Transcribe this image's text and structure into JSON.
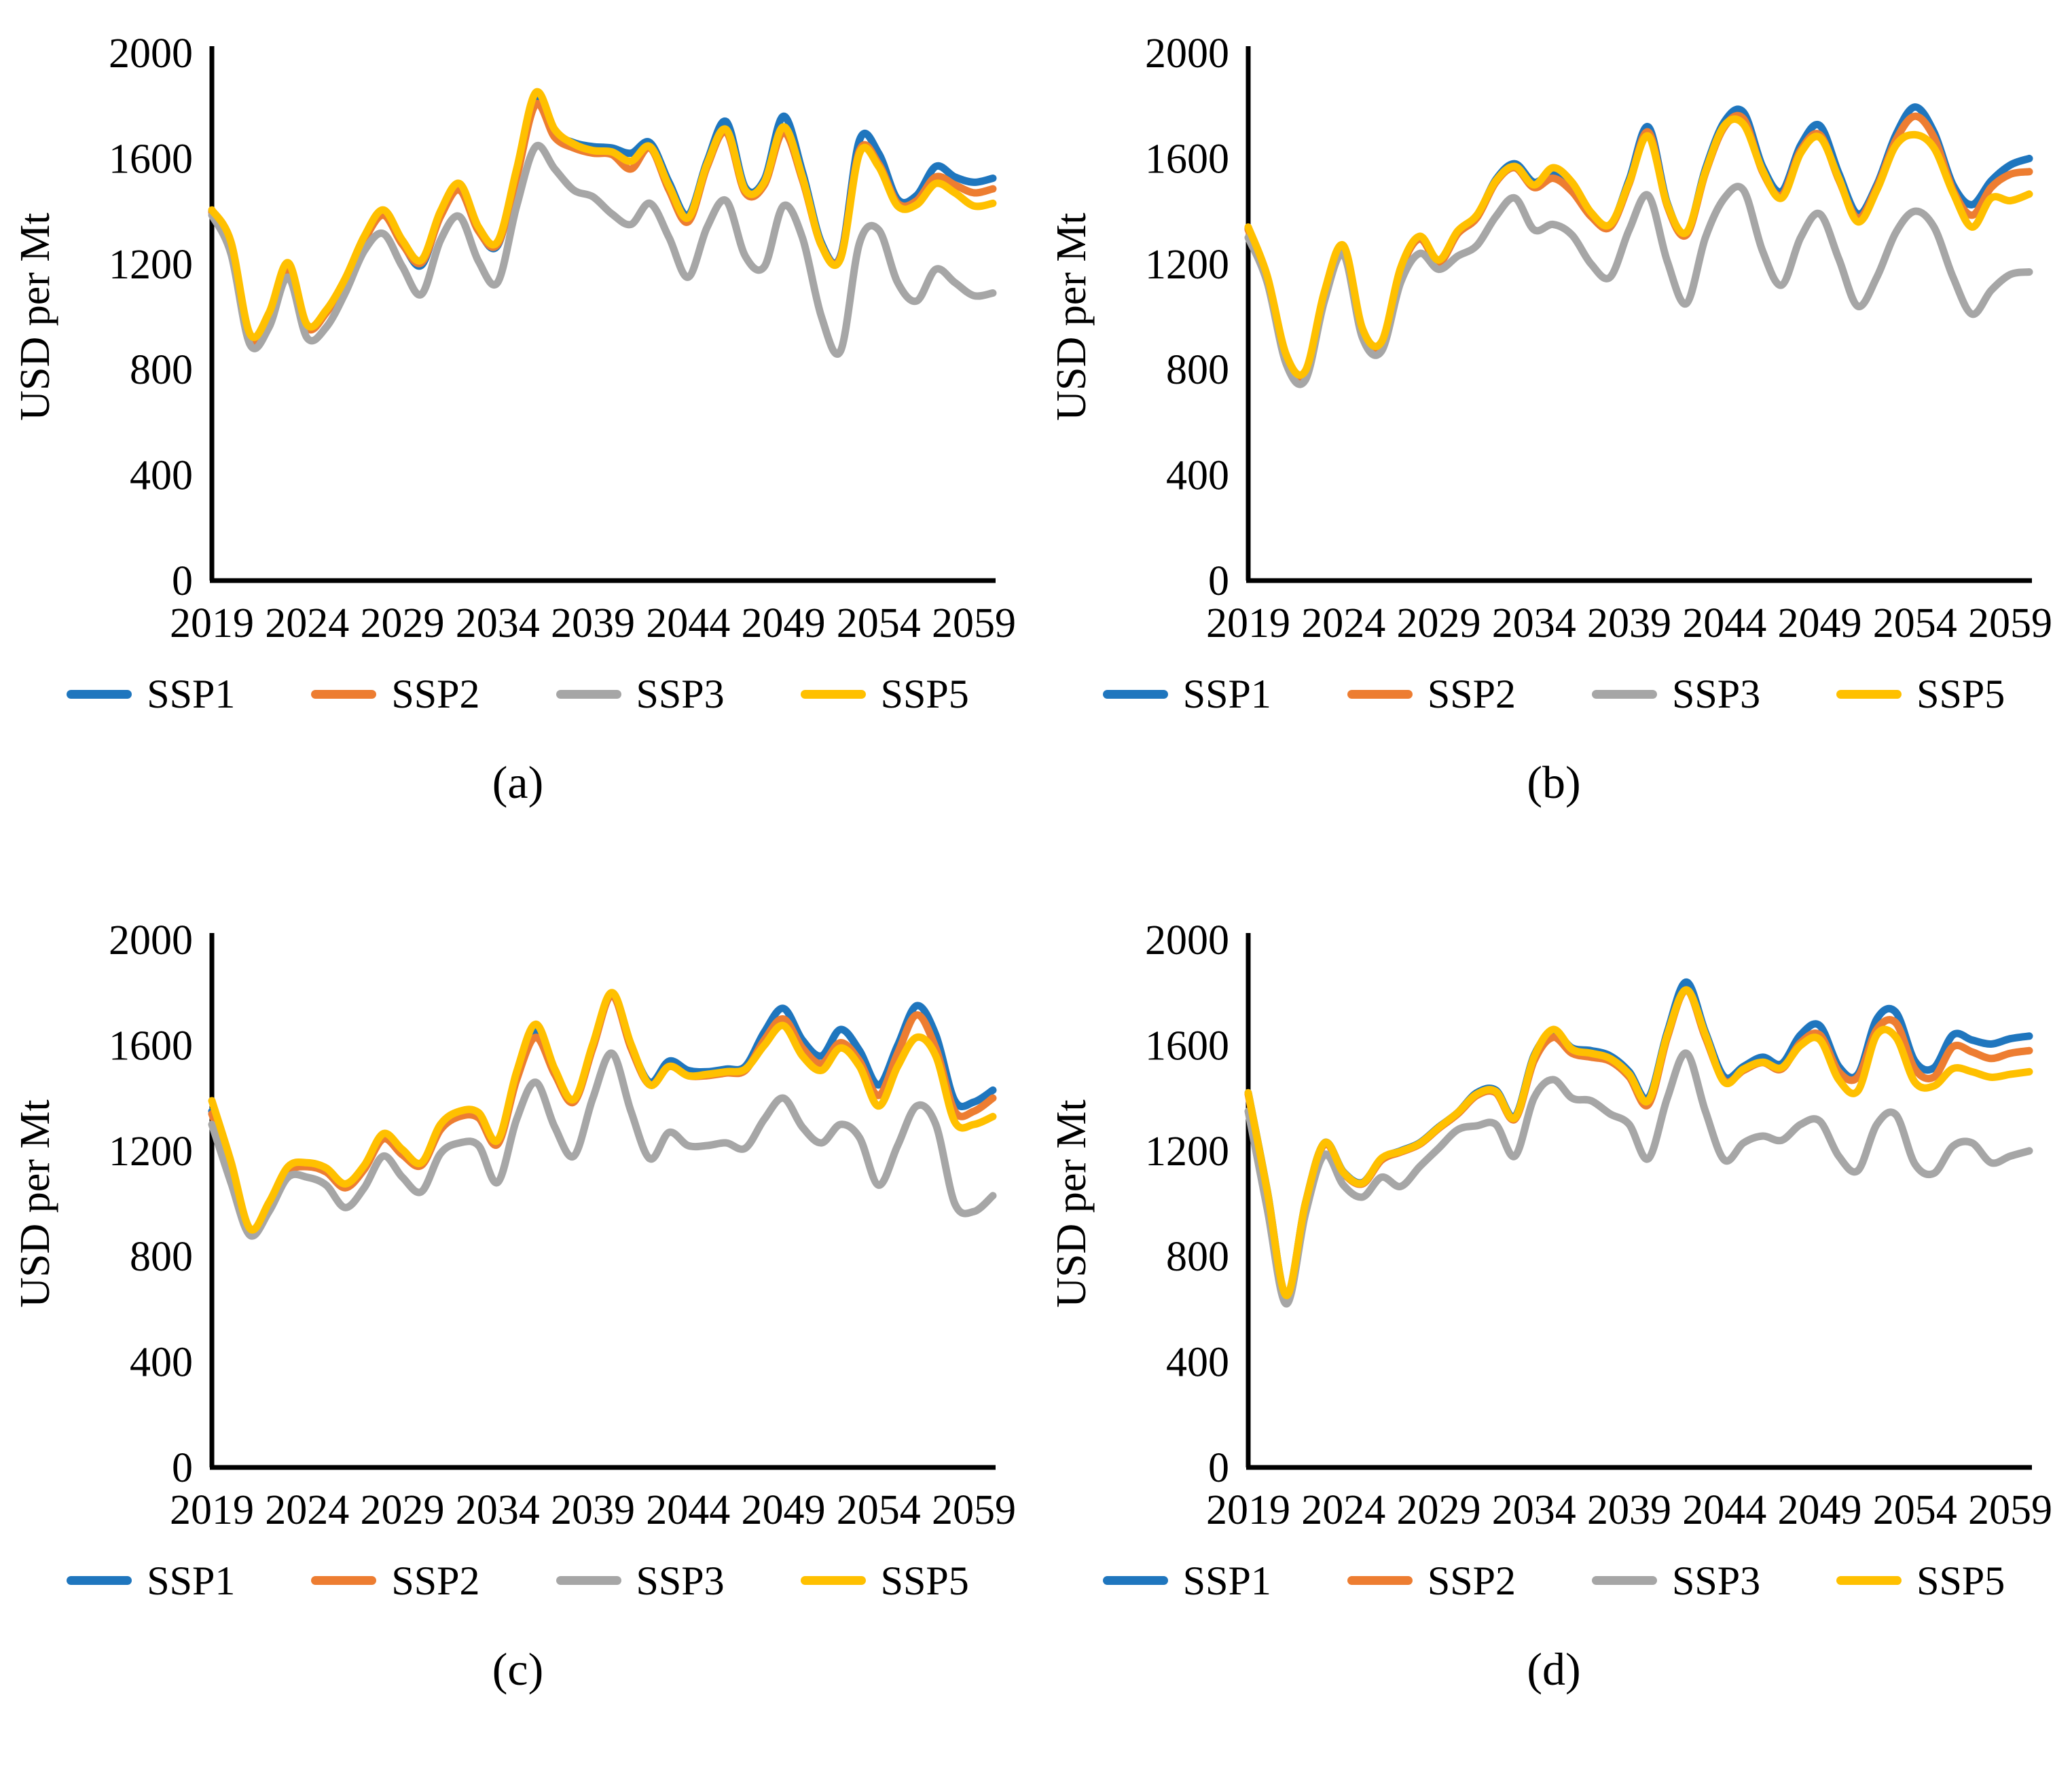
{
  "figure": {
    "y_axis_label": "USD per Mt",
    "y_ticks": [
      0,
      400,
      800,
      1200,
      1600,
      2000
    ],
    "x_ticks": [
      2019,
      2024,
      2029,
      2034,
      2039,
      2044,
      2049,
      2054,
      2059
    ],
    "ylim": [
      0,
      2000
    ],
    "x_range": [
      2019,
      2060
    ],
    "grid": "off",
    "legend_position": "bottom"
  },
  "legend": {
    "items": [
      {
        "label": "SSP1",
        "color": "#1F76BE"
      },
      {
        "label": "SSP2",
        "color": "#ED7D31"
      },
      {
        "label": "SSP3",
        "color": "#A6A6A6"
      },
      {
        "label": "SSP5",
        "color": "#FFC000"
      }
    ]
  },
  "chart_data": [
    {
      "type": "line",
      "caption": "(a)",
      "title": "",
      "xlabel": "",
      "ylabel": "USD per Mt",
      "ylim": [
        0,
        2000
      ],
      "x": [
        2019,
        2020,
        2021,
        2022,
        2023,
        2024,
        2025,
        2026,
        2027,
        2028,
        2029,
        2030,
        2031,
        2032,
        2033,
        2034,
        2035,
        2036,
        2037,
        2038,
        2039,
        2040,
        2041,
        2042,
        2043,
        2044,
        2045,
        2046,
        2047,
        2048,
        2049,
        2050,
        2051,
        2052,
        2053,
        2054,
        2055,
        2056,
        2057,
        2058,
        2059,
        2060
      ],
      "series": [
        {
          "name": "SSP1",
          "color": "#1F76BE",
          "values": [
            1400,
            1280,
            930,
            1010,
            1195,
            965,
            1020,
            1140,
            1300,
            1395,
            1280,
            1195,
            1390,
            1500,
            1330,
            1270,
            1550,
            1830,
            1700,
            1660,
            1645,
            1640,
            1620,
            1660,
            1510,
            1385,
            1590,
            1740,
            1490,
            1520,
            1760,
            1550,
            1280,
            1230,
            1670,
            1620,
            1445,
            1460,
            1570,
            1530,
            1510,
            1525
          ]
        },
        {
          "name": "SSP2",
          "color": "#ED7D31",
          "values": [
            1395,
            1275,
            920,
            1000,
            1180,
            958,
            1015,
            1135,
            1290,
            1385,
            1275,
            1205,
            1380,
            1480,
            1325,
            1275,
            1530,
            1805,
            1680,
            1640,
            1620,
            1615,
            1560,
            1640,
            1480,
            1360,
            1570,
            1700,
            1470,
            1500,
            1700,
            1520,
            1270,
            1225,
            1630,
            1580,
            1430,
            1440,
            1530,
            1500,
            1470,
            1485
          ]
        },
        {
          "name": "SSP3",
          "color": "#A6A6A6",
          "values": [
            1385,
            1240,
            895,
            960,
            1150,
            920,
            960,
            1090,
            1250,
            1315,
            1190,
            1085,
            1290,
            1380,
            1210,
            1130,
            1420,
            1645,
            1560,
            1480,
            1455,
            1390,
            1350,
            1430,
            1300,
            1150,
            1340,
            1440,
            1230,
            1190,
            1420,
            1300,
            1000,
            870,
            1280,
            1330,
            1130,
            1060,
            1180,
            1130,
            1080,
            1090
          ]
        },
        {
          "name": "SSP5",
          "color": "#FFC000",
          "values": [
            1405,
            1285,
            935,
            1015,
            1205,
            970,
            1025,
            1145,
            1305,
            1405,
            1290,
            1215,
            1400,
            1505,
            1340,
            1285,
            1560,
            1850,
            1710,
            1655,
            1630,
            1625,
            1590,
            1645,
            1495,
            1375,
            1580,
            1710,
            1480,
            1510,
            1720,
            1530,
            1270,
            1220,
            1620,
            1570,
            1420,
            1425,
            1505,
            1470,
            1420,
            1430
          ]
        }
      ]
    },
    {
      "type": "line",
      "caption": "(b)",
      "title": "",
      "xlabel": "",
      "ylabel": "USD per Mt",
      "ylim": [
        0,
        2000
      ],
      "x": [
        2019,
        2020,
        2021,
        2022,
        2023,
        2024,
        2025,
        2026,
        2027,
        2028,
        2029,
        2030,
        2031,
        2032,
        2033,
        2034,
        2035,
        2036,
        2037,
        2038,
        2039,
        2040,
        2041,
        2042,
        2043,
        2044,
        2045,
        2046,
        2047,
        2048,
        2049,
        2050,
        2051,
        2052,
        2053,
        2054,
        2055,
        2056,
        2057,
        2058,
        2059,
        2060
      ],
      "series": [
        {
          "name": "SSP1",
          "color": "#1F76BE",
          "values": [
            1335,
            1150,
            850,
            790,
            1090,
            1265,
            950,
            900,
            1180,
            1300,
            1210,
            1320,
            1380,
            1520,
            1580,
            1510,
            1545,
            1490,
            1390,
            1345,
            1520,
            1720,
            1430,
            1315,
            1560,
            1740,
            1775,
            1570,
            1475,
            1650,
            1725,
            1545,
            1390,
            1500,
            1690,
            1795,
            1700,
            1500,
            1425,
            1515,
            1575,
            1600
          ]
        },
        {
          "name": "SSP2",
          "color": "#ED7D31",
          "values": [
            1330,
            1145,
            845,
            785,
            1085,
            1260,
            945,
            895,
            1175,
            1295,
            1205,
            1315,
            1375,
            1510,
            1565,
            1490,
            1525,
            1475,
            1380,
            1340,
            1505,
            1700,
            1420,
            1310,
            1545,
            1720,
            1750,
            1550,
            1460,
            1630,
            1690,
            1520,
            1375,
            1490,
            1670,
            1760,
            1680,
            1480,
            1385,
            1490,
            1540,
            1550
          ]
        },
        {
          "name": "SSP3",
          "color": "#A6A6A6",
          "values": [
            1300,
            1130,
            820,
            760,
            1060,
            1235,
            920,
            870,
            1130,
            1240,
            1180,
            1230,
            1270,
            1380,
            1450,
            1330,
            1350,
            1310,
            1200,
            1150,
            1330,
            1460,
            1210,
            1050,
            1300,
            1450,
            1480,
            1250,
            1120,
            1300,
            1390,
            1220,
            1040,
            1150,
            1320,
            1400,
            1340,
            1150,
            1010,
            1100,
            1160,
            1170
          ]
        },
        {
          "name": "SSP5",
          "color": "#FFC000",
          "values": [
            1340,
            1155,
            855,
            795,
            1095,
            1270,
            955,
            905,
            1185,
            1305,
            1215,
            1325,
            1385,
            1515,
            1570,
            1500,
            1565,
            1510,
            1395,
            1350,
            1510,
            1685,
            1425,
            1320,
            1550,
            1725,
            1730,
            1555,
            1450,
            1620,
            1680,
            1525,
            1360,
            1480,
            1650,
            1690,
            1640,
            1470,
            1340,
            1450,
            1440,
            1465
          ]
        }
      ]
    },
    {
      "type": "line",
      "caption": "(c)",
      "title": "",
      "xlabel": "",
      "ylabel": "USD per Mt",
      "ylim": [
        0,
        2000
      ],
      "x": [
        2019,
        2020,
        2021,
        2022,
        2023,
        2024,
        2025,
        2026,
        2027,
        2028,
        2029,
        2030,
        2031,
        2032,
        2033,
        2034,
        2035,
        2036,
        2037,
        2038,
        2039,
        2040,
        2041,
        2042,
        2043,
        2044,
        2045,
        2046,
        2047,
        2048,
        2049,
        2050,
        2051,
        2052,
        2053,
        2054,
        2055,
        2056,
        2057,
        2058,
        2059,
        2060
      ],
      "series": [
        {
          "name": "SSP1",
          "color": "#1F76BE",
          "values": [
            1350,
            1150,
            900,
            1000,
            1130,
            1150,
            1130,
            1070,
            1140,
            1255,
            1195,
            1150,
            1290,
            1340,
            1335,
            1230,
            1480,
            1655,
            1500,
            1390,
            1600,
            1795,
            1600,
            1460,
            1540,
            1505,
            1500,
            1510,
            1520,
            1650,
            1740,
            1620,
            1560,
            1660,
            1580,
            1450,
            1600,
            1750,
            1640,
            1390,
            1385,
            1430
          ]
        },
        {
          "name": "SSP2",
          "color": "#ED7D31",
          "values": [
            1340,
            1140,
            895,
            995,
            1120,
            1140,
            1120,
            1060,
            1130,
            1245,
            1185,
            1145,
            1280,
            1330,
            1325,
            1225,
            1470,
            1630,
            1490,
            1385,
            1590,
            1790,
            1590,
            1450,
            1520,
            1485,
            1485,
            1495,
            1505,
            1620,
            1700,
            1590,
            1530,
            1610,
            1540,
            1410,
            1570,
            1715,
            1590,
            1350,
            1350,
            1400
          ]
        },
        {
          "name": "SSP3",
          "color": "#A6A6A6",
          "values": [
            1300,
            1080,
            880,
            970,
            1100,
            1100,
            1070,
            985,
            1060,
            1180,
            1100,
            1045,
            1190,
            1230,
            1220,
            1080,
            1320,
            1460,
            1290,
            1180,
            1400,
            1570,
            1350,
            1170,
            1270,
            1220,
            1220,
            1230,
            1210,
            1320,
            1400,
            1290,
            1230,
            1300,
            1250,
            1070,
            1220,
            1370,
            1300,
            1000,
            970,
            1030
          ]
        },
        {
          "name": "SSP5",
          "color": "#FFC000",
          "values": [
            1390,
            1160,
            905,
            1005,
            1140,
            1155,
            1135,
            1075,
            1145,
            1265,
            1205,
            1155,
            1300,
            1350,
            1345,
            1240,
            1500,
            1680,
            1510,
            1395,
            1605,
            1800,
            1605,
            1450,
            1520,
            1485,
            1490,
            1500,
            1510,
            1600,
            1675,
            1560,
            1505,
            1590,
            1520,
            1370,
            1520,
            1630,
            1560,
            1310,
            1300,
            1330
          ]
        }
      ]
    },
    {
      "type": "line",
      "caption": "(d)",
      "title": "",
      "xlabel": "",
      "ylabel": "USD per Mt",
      "ylim": [
        0,
        2000
      ],
      "x": [
        2019,
        2020,
        2021,
        2022,
        2023,
        2024,
        2025,
        2026,
        2027,
        2028,
        2029,
        2030,
        2031,
        2032,
        2033,
        2034,
        2035,
        2036,
        2037,
        2038,
        2039,
        2040,
        2041,
        2042,
        2043,
        2044,
        2045,
        2046,
        2047,
        2048,
        2049,
        2050,
        2051,
        2052,
        2053,
        2054,
        2055,
        2056,
        2057,
        2058,
        2059,
        2060
      ],
      "series": [
        {
          "name": "SSP1",
          "color": "#1F76BE",
          "values": [
            1420,
            1050,
            650,
            1000,
            1230,
            1120,
            1080,
            1170,
            1200,
            1230,
            1290,
            1345,
            1420,
            1430,
            1330,
            1560,
            1650,
            1590,
            1580,
            1560,
            1500,
            1400,
            1650,
            1840,
            1650,
            1480,
            1520,
            1555,
            1530,
            1640,
            1675,
            1520,
            1490,
            1700,
            1725,
            1540,
            1515,
            1640,
            1620,
            1605,
            1625,
            1635
          ]
        },
        {
          "name": "SSP2",
          "color": "#ED7D31",
          "values": [
            1415,
            1045,
            648,
            995,
            1225,
            1115,
            1075,
            1165,
            1195,
            1225,
            1285,
            1340,
            1410,
            1420,
            1320,
            1540,
            1630,
            1570,
            1555,
            1540,
            1480,
            1375,
            1630,
            1810,
            1630,
            1465,
            1505,
            1535,
            1510,
            1610,
            1640,
            1500,
            1480,
            1660,
            1685,
            1510,
            1480,
            1595,
            1575,
            1550,
            1570,
            1580
          ]
        },
        {
          "name": "SSP3",
          "color": "#A6A6A6",
          "values": [
            1350,
            980,
            620,
            960,
            1185,
            1070,
            1025,
            1100,
            1065,
            1140,
            1210,
            1280,
            1295,
            1300,
            1180,
            1400,
            1470,
            1400,
            1390,
            1340,
            1300,
            1170,
            1400,
            1570,
            1350,
            1165,
            1230,
            1256,
            1240,
            1300,
            1313,
            1180,
            1125,
            1300,
            1337,
            1150,
            1115,
            1218,
            1230,
            1155,
            1180,
            1200
          ]
        },
        {
          "name": "SSP5",
          "color": "#FFC000",
          "values": [
            1420,
            1048,
            652,
            1000,
            1230,
            1118,
            1078,
            1172,
            1198,
            1228,
            1288,
            1345,
            1415,
            1425,
            1325,
            1555,
            1660,
            1585,
            1570,
            1550,
            1490,
            1390,
            1640,
            1810,
            1640,
            1460,
            1510,
            1536,
            1515,
            1600,
            1622,
            1470,
            1427,
            1640,
            1631,
            1460,
            1446,
            1512,
            1500,
            1479,
            1490,
            1500
          ]
        }
      ]
    }
  ]
}
